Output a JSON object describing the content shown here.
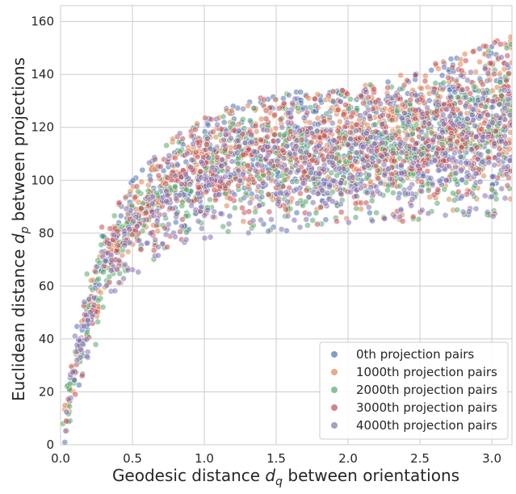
{
  "chart_data": {
    "type": "scatter",
    "title": "",
    "xlabel": "Geodesic distance d_q between orientations",
    "xlabel_parts": [
      "Geodesic distance ",
      "d",
      "q",
      " between orientations"
    ],
    "ylabel": "Euclidean distance d_p between projections",
    "ylabel_parts": [
      "Euclidean distance ",
      "d",
      "p",
      " between projections"
    ],
    "xlim": [
      0.0,
      3.14
    ],
    "ylim": [
      0,
      166
    ],
    "xticks": [
      0.0,
      0.5,
      1.0,
      1.5,
      2.0,
      2.5,
      3.0
    ],
    "xtick_labels": [
      "0.0",
      "0.5",
      "1.0",
      "1.5",
      "2.0",
      "2.5",
      "3.0"
    ],
    "yticks": [
      0,
      20,
      40,
      60,
      80,
      100,
      120,
      140,
      160
    ],
    "ytick_labels": [
      "0",
      "20",
      "40",
      "60",
      "80",
      "100",
      "120",
      "140",
      "160"
    ],
    "grid": true,
    "legend_position": "bottom-right",
    "series": [
      {
        "name": "0th projection pairs",
        "color": "#4c72b0"
      },
      {
        "name": "1000th projection pairs",
        "color": "#dd8452"
      },
      {
        "name": "2000th projection pairs",
        "color": "#55a868"
      },
      {
        "name": "3000th projection pairs",
        "color": "#c44e52"
      },
      {
        "name": "4000th projection pairs",
        "color": "#8172b3"
      }
    ],
    "envelope_points": [
      [
        0.0,
        0
      ],
      [
        0.05,
        14
      ],
      [
        0.1,
        30
      ],
      [
        0.2,
        48
      ],
      [
        0.3,
        70
      ],
      [
        0.4,
        82
      ],
      [
        0.5,
        92
      ],
      [
        0.7,
        104
      ],
      [
        1.0,
        112
      ],
      [
        1.5,
        120
      ],
      [
        2.0,
        125
      ],
      [
        2.5,
        130
      ],
      [
        3.0,
        135
      ],
      [
        3.14,
        136
      ]
    ],
    "upper_edge_points": [
      [
        0.3,
        82
      ],
      [
        0.5,
        100
      ],
      [
        0.75,
        116
      ],
      [
        1.0,
        124
      ],
      [
        1.5,
        134
      ],
      [
        2.0,
        134
      ],
      [
        2.5,
        142
      ],
      [
        3.0,
        152
      ],
      [
        3.14,
        155
      ]
    ],
    "lower_edge_points": [
      [
        0.3,
        55
      ],
      [
        0.5,
        62
      ],
      [
        0.75,
        72
      ],
      [
        1.0,
        78
      ],
      [
        1.5,
        80
      ],
      [
        2.0,
        84
      ],
      [
        2.5,
        84
      ],
      [
        3.0,
        86
      ],
      [
        3.14,
        87
      ]
    ]
  }
}
